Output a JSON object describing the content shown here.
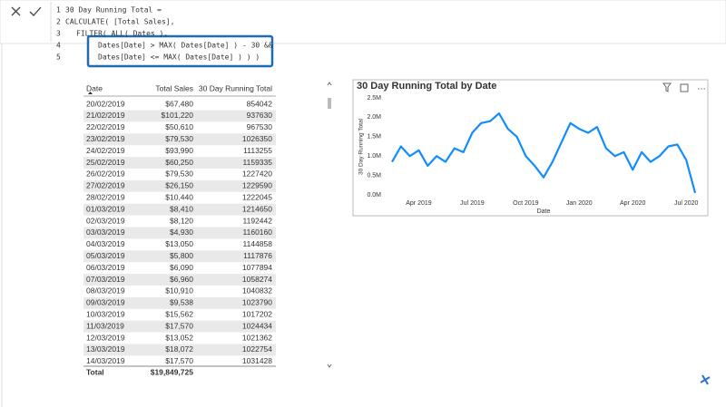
{
  "formula_bar": {
    "lines": [
      {
        "number": 1,
        "code": "30 Day Running Total ="
      },
      {
        "number": 2,
        "code": "CALCULATE( [Total Sales],"
      },
      {
        "number": 3,
        "code": "FILTER( ALL( Dates ),"
      },
      {
        "number": 4,
        "code": "Dates[Date] > MAX( Dates[Date] ) - 30 &&"
      },
      {
        "number": 5,
        "code": "Dates[Date] <= MAX( Dates[Date] ) ) )"
      }
    ]
  },
  "table": {
    "columns": [
      "Date",
      "Total Sales",
      "30 Day Running Total"
    ],
    "rows": [
      [
        "20/02/2019",
        "$67,480",
        "854042"
      ],
      [
        "21/02/2019",
        "$101,220",
        "937630"
      ],
      [
        "22/02/2019",
        "$50,610",
        "967530"
      ],
      [
        "23/02/2019",
        "$79,530",
        "1026350"
      ],
      [
        "24/02/2019",
        "$93,990",
        "1113255"
      ],
      [
        "25/02/2019",
        "$60,250",
        "1159335"
      ],
      [
        "26/02/2019",
        "$79,530",
        "1227420"
      ],
      [
        "27/02/2019",
        "$26,150",
        "1229590"
      ],
      [
        "28/02/2019",
        "$10,440",
        "1222045"
      ],
      [
        "01/03/2019",
        "$8,410",
        "1214650"
      ],
      [
        "02/03/2019",
        "$8,120",
        "1192442"
      ],
      [
        "03/03/2019",
        "$4,930",
        "1160160"
      ],
      [
        "04/03/2019",
        "$13,050",
        "1144858"
      ],
      [
        "05/03/2019",
        "$5,800",
        "1117876"
      ],
      [
        "06/03/2019",
        "$6,090",
        "1077894"
      ],
      [
        "07/03/2019",
        "$6,960",
        "1058274"
      ],
      [
        "08/03/2019",
        "$10,910",
        "1040832"
      ],
      [
        "09/03/2019",
        "$9,538",
        "1023790"
      ],
      [
        "10/03/2019",
        "$15,562",
        "1017202"
      ],
      [
        "11/03/2019",
        "$17,570",
        "1024434"
      ],
      [
        "12/03/2019",
        "$13,052",
        "1021362"
      ],
      [
        "13/03/2019",
        "$18,072",
        "1022754"
      ],
      [
        "14/03/2019",
        "$17,570",
        "1031428"
      ]
    ],
    "total": {
      "label": "Total",
      "total_sales": "$19,849,725"
    }
  },
  "chart_data": {
    "type": "line",
    "title": "30 Day Running Total by Date",
    "x_label": "Date",
    "y_label": "30 Day Running Total",
    "categories": [
      null,
      null,
      null,
      "Apr 2019",
      null,
      null,
      null,
      null,
      null,
      "Jul 2019",
      null,
      null,
      null,
      null,
      null,
      "Oct 2019",
      null,
      null,
      null,
      null,
      null,
      "Jan 2020",
      null,
      null,
      null,
      null,
      null,
      "Apr 2020",
      null,
      null,
      null,
      null,
      null,
      "Jul 2020",
      null
    ],
    "values": [
      850000,
      1250000,
      1000000,
      1150000,
      750000,
      1000000,
      850000,
      1200000,
      1100000,
      1600000,
      1850000,
      1900000,
      2100000,
      1700000,
      1500000,
      1000000,
      750000,
      450000,
      850000,
      1350000,
      1850000,
      1700000,
      1600000,
      1750000,
      1200000,
      1000000,
      1100000,
      650000,
      1100000,
      850000,
      1000000,
      1250000,
      1300000,
      900000,
      50000
    ],
    "color": "#118dff",
    "ylim": [
      0,
      2500000
    ],
    "yticks": [
      {
        "value": 0,
        "label": "0.0M"
      },
      {
        "value": 500000,
        "label": "0.5M"
      },
      {
        "value": 1000000,
        "label": "1.0M"
      },
      {
        "value": 1500000,
        "label": "1.5M"
      },
      {
        "value": 2000000,
        "label": "2.0M"
      },
      {
        "value": 2500000,
        "label": "2.5M"
      }
    ],
    "grid": false
  }
}
